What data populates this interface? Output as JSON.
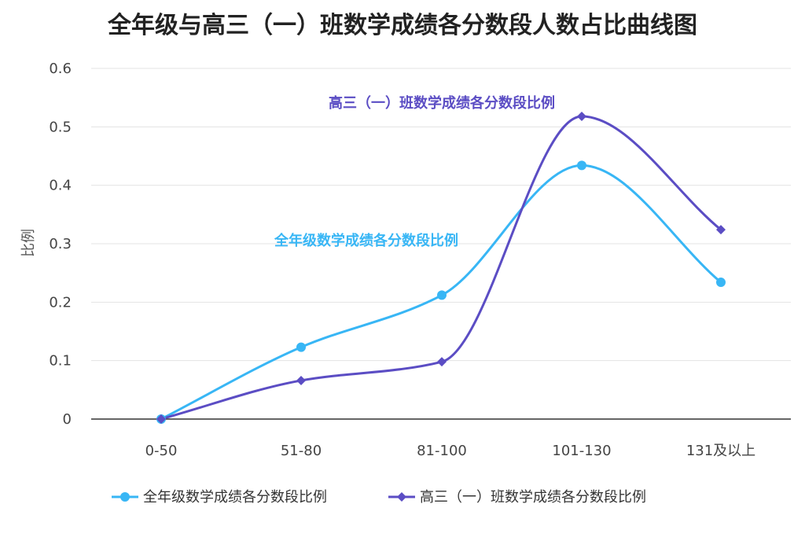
{
  "chart_data": {
    "type": "line",
    "title": "全年级与高三（一）班数学成绩各分数段人数占比曲线图",
    "ylabel": "比例",
    "xlabel": "",
    "categories": [
      "0-50",
      "51-80",
      "81-100",
      "101-130",
      "131及以上"
    ],
    "ylim": [
      0,
      0.6
    ],
    "yticks": [
      "0",
      "0.1",
      "0.2",
      "0.3",
      "0.4",
      "0.5",
      "0.6"
    ],
    "grid": true,
    "legend_position": "bottom",
    "series": [
      {
        "name": "全年级数学成绩各分数段比例",
        "values": [
          0,
          0.123,
          0.212,
          0.434,
          0.234
        ],
        "color": "#38b6f5",
        "marker": "circle",
        "annotation": "全年级数学成绩各分数段比例"
      },
      {
        "name": "高三（一）班数学成绩各分数段比例",
        "values": [
          0,
          0.066,
          0.098,
          0.518,
          0.324
        ],
        "color": "#5b4dc4",
        "marker": "diamond",
        "annotation": "高三（一）班数学成绩各分数段比例"
      }
    ]
  }
}
